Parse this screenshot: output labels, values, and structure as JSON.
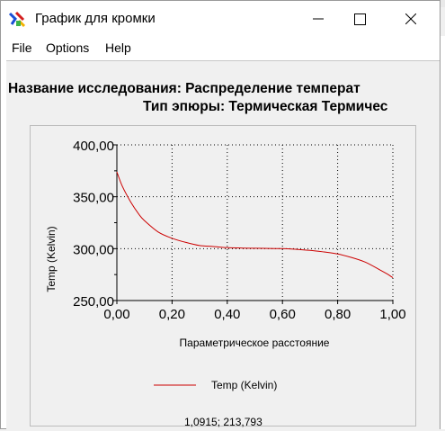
{
  "window": {
    "title": "График для кромки"
  },
  "menu": {
    "items": [
      "File",
      "Options",
      "Help"
    ]
  },
  "study": {
    "name_line": "Название исследования: Распределение температ",
    "plot_type_line": "Тип эпюры: Термическая Термичес"
  },
  "chart_data": {
    "type": "line",
    "xlabel": "Параметрическое расстояние",
    "ylabel": "Temp (Kelvin)",
    "xlim": [
      0.0,
      1.0
    ],
    "ylim": [
      250.0,
      400.0
    ],
    "x_ticks": [
      "0,00",
      "0,20",
      "0,40",
      "0,60",
      "0,80",
      "1,00"
    ],
    "y_ticks": [
      "250,00",
      "300,00",
      "350,00",
      "400,00"
    ],
    "grid": true,
    "legend_position": "bottom-center",
    "series": [
      {
        "name": "Temp (Kelvin)",
        "color": "#cc0000",
        "x": [
          0.0,
          0.02,
          0.05,
          0.08,
          0.1,
          0.15,
          0.2,
          0.25,
          0.3,
          0.35,
          0.4,
          0.45,
          0.5,
          0.55,
          0.6,
          0.65,
          0.7,
          0.75,
          0.8,
          0.85,
          0.9,
          0.95,
          0.98,
          1.0
        ],
        "y": [
          374,
          360,
          345,
          333,
          327,
          316,
          310,
          306,
          303,
          302,
          301,
          300.6,
          300.4,
          300.2,
          300,
          299.3,
          298.3,
          296.8,
          294.8,
          291.5,
          287,
          280,
          275.5,
          272
        ]
      }
    ]
  },
  "status": {
    "cursor_readout": "1,0915; 213,793"
  }
}
